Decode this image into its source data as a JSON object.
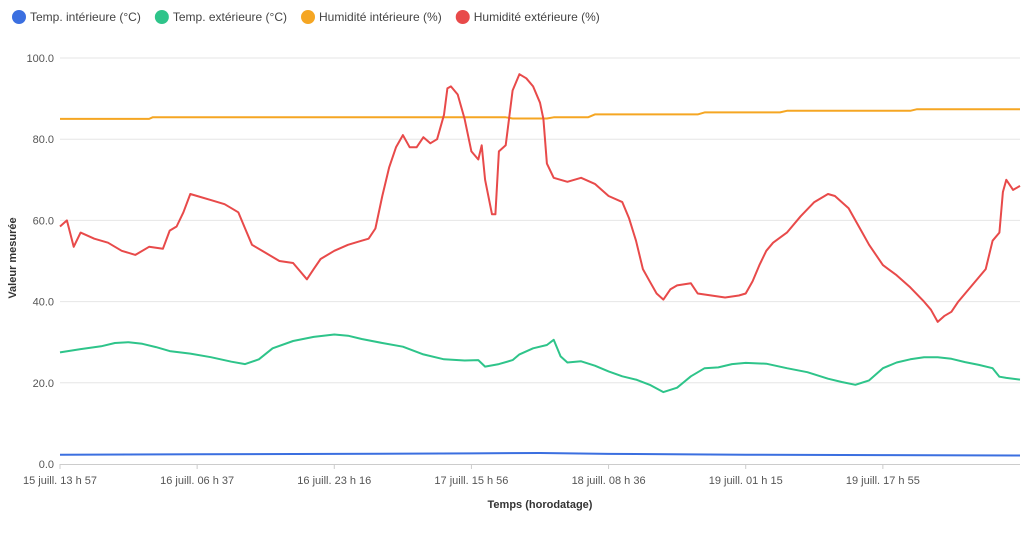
{
  "chart_data": {
    "type": "line",
    "xlabel": "Temps (horodatage)",
    "ylabel": "Valeur mesurée",
    "ylim": [
      0,
      100
    ],
    "ytick_labels": [
      "0.0",
      "20.0",
      "40.0",
      "60.0",
      "80.0",
      "100.0"
    ],
    "ytick_values": [
      0,
      20,
      40,
      60,
      80,
      100
    ],
    "x_range": [
      0,
      140
    ],
    "xtick_labels": [
      "15 juill. 13 h 57",
      "16 juill. 06 h 37",
      "16 juill. 23 h 16",
      "17 juill. 15 h 56",
      "18 juill. 08 h 36",
      "19 juill. 01 h 15",
      "19 juill. 17 h 55"
    ],
    "xtick_values": [
      0,
      20,
      40,
      60,
      80,
      100,
      120
    ],
    "grid": "horizontal",
    "legend_position": "top-left",
    "series": [
      {
        "name": "Temp. intérieure (°C)",
        "color": "#3b6fe0",
        "points": [
          [
            0,
            2.3
          ],
          [
            20,
            2.4
          ],
          [
            40,
            2.5
          ],
          [
            60,
            2.6
          ],
          [
            70,
            2.7
          ],
          [
            80,
            2.5
          ],
          [
            100,
            2.3
          ],
          [
            120,
            2.2
          ],
          [
            140,
            2.1
          ]
        ]
      },
      {
        "name": "Temp. extérieure (°C)",
        "color": "#2ec48a",
        "points": [
          [
            0,
            27.5
          ],
          [
            3,
            28.3
          ],
          [
            6,
            29.0
          ],
          [
            8,
            29.8
          ],
          [
            10,
            30.0
          ],
          [
            12,
            29.6
          ],
          [
            14,
            28.8
          ],
          [
            16,
            27.8
          ],
          [
            19,
            27.2
          ],
          [
            22,
            26.3
          ],
          [
            25,
            25.2
          ],
          [
            27,
            24.6
          ],
          [
            29,
            25.8
          ],
          [
            31,
            28.5
          ],
          [
            34,
            30.3
          ],
          [
            37,
            31.3
          ],
          [
            40,
            31.9
          ],
          [
            42,
            31.6
          ],
          [
            44,
            30.8
          ],
          [
            47,
            29.8
          ],
          [
            50,
            28.9
          ],
          [
            53,
            27.0
          ],
          [
            56,
            25.8
          ],
          [
            59,
            25.5
          ],
          [
            61,
            25.6
          ],
          [
            62,
            24.0
          ],
          [
            64,
            24.6
          ],
          [
            66,
            25.6
          ],
          [
            67,
            27.0
          ],
          [
            69,
            28.5
          ],
          [
            71,
            29.3
          ],
          [
            72,
            30.6
          ],
          [
            73,
            26.5
          ],
          [
            74,
            25.0
          ],
          [
            76,
            25.3
          ],
          [
            78,
            24.2
          ],
          [
            80,
            22.8
          ],
          [
            82,
            21.6
          ],
          [
            84,
            20.8
          ],
          [
            86,
            19.5
          ],
          [
            88,
            17.7
          ],
          [
            90,
            18.8
          ],
          [
            92,
            21.6
          ],
          [
            94,
            23.6
          ],
          [
            96,
            23.8
          ],
          [
            98,
            24.6
          ],
          [
            100,
            24.9
          ],
          [
            103,
            24.7
          ],
          [
            106,
            23.6
          ],
          [
            109,
            22.6
          ],
          [
            112,
            21.0
          ],
          [
            114,
            20.2
          ],
          [
            116,
            19.5
          ],
          [
            118,
            20.6
          ],
          [
            120,
            23.6
          ],
          [
            122,
            25.0
          ],
          [
            124,
            25.8
          ],
          [
            126,
            26.3
          ],
          [
            128,
            26.3
          ],
          [
            130,
            25.9
          ],
          [
            132,
            25.1
          ],
          [
            134,
            24.4
          ],
          [
            136,
            23.6
          ],
          [
            137,
            21.5
          ],
          [
            138,
            21.2
          ],
          [
            140,
            20.8
          ]
        ]
      },
      {
        "name": "Humidité intérieure (%)",
        "color": "#f5a623",
        "points": [
          [
            0,
            85.0
          ],
          [
            13,
            85.0
          ],
          [
            13.5,
            85.4
          ],
          [
            40,
            85.4
          ],
          [
            65,
            85.4
          ],
          [
            66,
            85.1
          ],
          [
            71,
            85.1
          ],
          [
            72,
            85.4
          ],
          [
            77,
            85.4
          ],
          [
            78,
            86.1
          ],
          [
            93,
            86.1
          ],
          [
            94,
            86.6
          ],
          [
            105,
            86.6
          ],
          [
            106,
            87.0
          ],
          [
            124,
            87.0
          ],
          [
            125,
            87.4
          ],
          [
            140,
            87.4
          ]
        ]
      },
      {
        "name": "Humidité extérieure (%)",
        "color": "#e84a4a",
        "points": [
          [
            0,
            58.5
          ],
          [
            1,
            60.0
          ],
          [
            2,
            53.5
          ],
          [
            3,
            57.0
          ],
          [
            5,
            55.5
          ],
          [
            7,
            54.5
          ],
          [
            9,
            52.5
          ],
          [
            11,
            51.5
          ],
          [
            13,
            53.5
          ],
          [
            15,
            53.0
          ],
          [
            16,
            57.5
          ],
          [
            17,
            58.5
          ],
          [
            18,
            62.0
          ],
          [
            19,
            66.5
          ],
          [
            20,
            66.0
          ],
          [
            22,
            65.0
          ],
          [
            24,
            64.0
          ],
          [
            25,
            63.0
          ],
          [
            26,
            62.0
          ],
          [
            27,
            58.0
          ],
          [
            28,
            54.0
          ],
          [
            30,
            52.0
          ],
          [
            32,
            50.0
          ],
          [
            34,
            49.5
          ],
          [
            35,
            47.5
          ],
          [
            36,
            45.5
          ],
          [
            37,
            48.0
          ],
          [
            38,
            50.5
          ],
          [
            40,
            52.5
          ],
          [
            42,
            54.0
          ],
          [
            44,
            55.0
          ],
          [
            45,
            55.5
          ],
          [
            46,
            58.0
          ],
          [
            47,
            66.0
          ],
          [
            48,
            73.0
          ],
          [
            49,
            78.0
          ],
          [
            50,
            81.0
          ],
          [
            51,
            78.0
          ],
          [
            52,
            78.0
          ],
          [
            53,
            80.5
          ],
          [
            54,
            79.0
          ],
          [
            55,
            80.0
          ],
          [
            56,
            86.0
          ],
          [
            56.5,
            92.5
          ],
          [
            57,
            93.0
          ],
          [
            58,
            91.0
          ],
          [
            59,
            85.0
          ],
          [
            60,
            77.0
          ],
          [
            61,
            75.0
          ],
          [
            61.5,
            78.5
          ],
          [
            62,
            70.0
          ],
          [
            63,
            61.5
          ],
          [
            63.5,
            61.5
          ],
          [
            64,
            77.0
          ],
          [
            65,
            78.5
          ],
          [
            66,
            92.0
          ],
          [
            67,
            96.0
          ],
          [
            68,
            95.0
          ],
          [
            69,
            93.0
          ],
          [
            70,
            89.0
          ],
          [
            70.5,
            85.0
          ],
          [
            71,
            74.0
          ],
          [
            72,
            70.5
          ],
          [
            74,
            69.5
          ],
          [
            76,
            70.5
          ],
          [
            78,
            69.0
          ],
          [
            80,
            66.0
          ],
          [
            82,
            64.5
          ],
          [
            83,
            60.5
          ],
          [
            84,
            55.0
          ],
          [
            85,
            48.0
          ],
          [
            86,
            45.0
          ],
          [
            87,
            42.0
          ],
          [
            88,
            40.5
          ],
          [
            89,
            43.0
          ],
          [
            90,
            44.0
          ],
          [
            92,
            44.5
          ],
          [
            93,
            42.0
          ],
          [
            95,
            41.5
          ],
          [
            97,
            41.0
          ],
          [
            99,
            41.5
          ],
          [
            100,
            42.0
          ],
          [
            101,
            45.0
          ],
          [
            102,
            49.0
          ],
          [
            103,
            52.5
          ],
          [
            104,
            54.5
          ],
          [
            106,
            57.0
          ],
          [
            108,
            61.0
          ],
          [
            110,
            64.5
          ],
          [
            112,
            66.5
          ],
          [
            113,
            66.0
          ],
          [
            115,
            63.0
          ],
          [
            117,
            57.0
          ],
          [
            118,
            54.0
          ],
          [
            120,
            49.0
          ],
          [
            122,
            46.5
          ],
          [
            124,
            43.5
          ],
          [
            126,
            40.0
          ],
          [
            127,
            38.0
          ],
          [
            128,
            35.0
          ],
          [
            129,
            36.5
          ],
          [
            130,
            37.5
          ],
          [
            131,
            40.0
          ],
          [
            133,
            44.0
          ],
          [
            135,
            48.0
          ],
          [
            136,
            55.0
          ],
          [
            137,
            57.0
          ],
          [
            137.5,
            67.0
          ],
          [
            138,
            70.0
          ],
          [
            139,
            67.5
          ],
          [
            140,
            68.5
          ]
        ]
      }
    ]
  }
}
